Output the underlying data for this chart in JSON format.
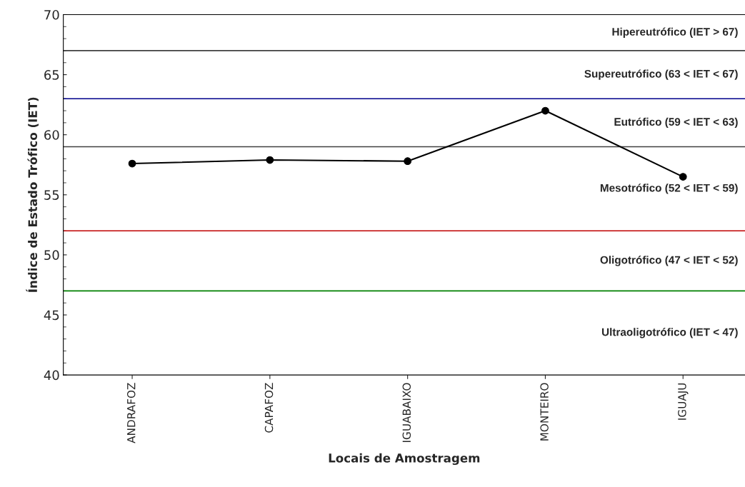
{
  "chart_data": {
    "type": "line",
    "xlabel": "Locais de Amostragem",
    "ylabel": "Índice de Estado Trófico (IET)",
    "categories": [
      "ANDRAFOZ",
      "CAPAFOZ",
      "IGUABAIXO",
      "MONTEIRO",
      "IGUAJU"
    ],
    "series": [
      {
        "color": "#000000",
        "values": [
          57.6,
          57.9,
          57.8,
          62.0,
          56.5
        ]
      }
    ],
    "marker": "circle",
    "line_style": "solid",
    "ylim": [
      40,
      70
    ],
    "yticks": [
      40,
      45,
      50,
      55,
      60,
      65,
      70
    ],
    "grid": false,
    "legend": false,
    "ref_lines": [
      {
        "axis": "y",
        "value": 67,
        "color": "#404040"
      },
      {
        "axis": "y",
        "value": 63,
        "color": "#00008b"
      },
      {
        "axis": "y",
        "value": 59,
        "color": "#404040"
      },
      {
        "axis": "y",
        "value": 52,
        "color": "#c00000"
      },
      {
        "axis": "y",
        "value": 47,
        "color": "#008000"
      }
    ],
    "annotations": [
      "Hipereutrófico (IET > 67)",
      "Supereutrófico (63 < IET < 67)",
      "Eutrófico (59 < IET < 63)",
      "Mesotrófico (52 < IET < 59)",
      "Oligotrófico (47 < IET < 52)",
      "Ultraoligotrófico (IET < 47)"
    ]
  }
}
